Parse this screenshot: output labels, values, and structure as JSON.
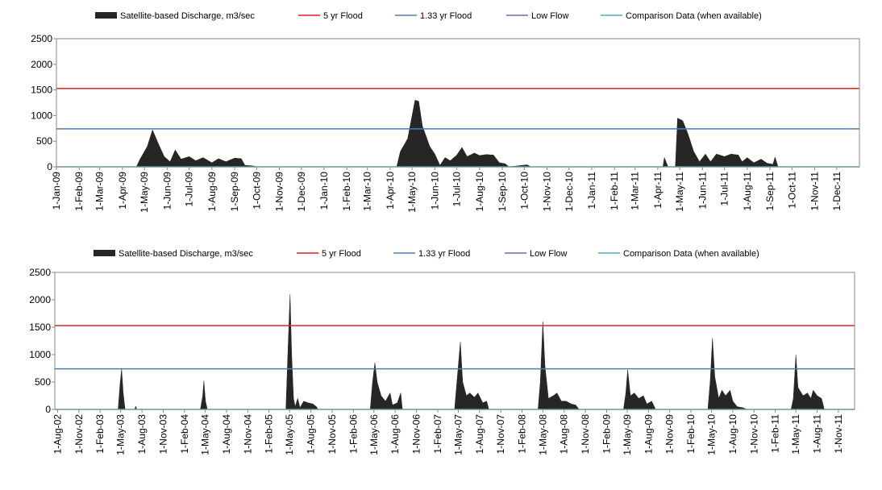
{
  "chart_data": [
    {
      "type": "area",
      "ylim": [
        0,
        2500
      ],
      "yticks": [
        0,
        500,
        1000,
        1500,
        2000,
        2500
      ],
      "xlim": [
        "2009-01-01",
        "2012-01-01"
      ],
      "xticks": [
        {
          "value": "2009-01-01",
          "label": "1-Jan-09"
        },
        {
          "value": "2009-02-01",
          "label": "1-Feb-09"
        },
        {
          "value": "2009-03-01",
          "label": "1-Mar-09"
        },
        {
          "value": "2009-04-01",
          "label": "1-Apr-09"
        },
        {
          "value": "2009-05-01",
          "label": "1-May-09"
        },
        {
          "value": "2009-06-01",
          "label": "1-Jun-09"
        },
        {
          "value": "2009-07-01",
          "label": "1-Jul-09"
        },
        {
          "value": "2009-08-01",
          "label": "1-Aug-09"
        },
        {
          "value": "2009-09-01",
          "label": "1-Sep-09"
        },
        {
          "value": "2009-10-01",
          "label": "1-Oct-09"
        },
        {
          "value": "2009-11-01",
          "label": "1-Nov-09"
        },
        {
          "value": "2009-12-01",
          "label": "1-Dec-09"
        },
        {
          "value": "2010-01-01",
          "label": "1-Jan-10"
        },
        {
          "value": "2010-02-01",
          "label": "1-Feb-10"
        },
        {
          "value": "2010-03-01",
          "label": "1-Mar-10"
        },
        {
          "value": "2010-04-01",
          "label": "1-Apr-10"
        },
        {
          "value": "2010-05-01",
          "label": "1-May-10"
        },
        {
          "value": "2010-06-01",
          "label": "1-Jun-10"
        },
        {
          "value": "2010-07-01",
          "label": "1-Jul-10"
        },
        {
          "value": "2010-08-01",
          "label": "1-Aug-10"
        },
        {
          "value": "2010-09-01",
          "label": "1-Sep-10"
        },
        {
          "value": "2010-10-01",
          "label": "1-Oct-10"
        },
        {
          "value": "2010-11-01",
          "label": "1-Nov-10"
        },
        {
          "value": "2010-12-01",
          "label": "1-Dec-10"
        },
        {
          "value": "2011-01-01",
          "label": "1-Jan-11"
        },
        {
          "value": "2011-02-01",
          "label": "1-Feb-11"
        },
        {
          "value": "2011-03-01",
          "label": "1-Mar-11"
        },
        {
          "value": "2011-04-01",
          "label": "1-Apr-11"
        },
        {
          "value": "2011-05-01",
          "label": "1-May-11"
        },
        {
          "value": "2011-06-01",
          "label": "1-Jun-11"
        },
        {
          "value": "2011-07-01",
          "label": "1-Jul-11"
        },
        {
          "value": "2011-08-01",
          "label": "1-Aug-11"
        },
        {
          "value": "2011-09-01",
          "label": "1-Sep-11"
        },
        {
          "value": "2011-10-01",
          "label": "1-Oct-11"
        },
        {
          "value": "2011-11-01",
          "label": "1-Nov-11"
        },
        {
          "value": "2011-12-01",
          "label": "1-Dec-11"
        }
      ],
      "legend": "top",
      "series": [
        {
          "name": "Satellite-based Discharge, m3/sec",
          "type": "area",
          "color": "#262626",
          "x": [
            "2009-01-01",
            "2009-04-20",
            "2009-04-25",
            "2009-05-05",
            "2009-05-12",
            "2009-05-20",
            "2009-05-28",
            "2009-06-05",
            "2009-06-12",
            "2009-06-20",
            "2009-07-01",
            "2009-07-10",
            "2009-07-20",
            "2009-08-01",
            "2009-08-10",
            "2009-08-20",
            "2009-09-01",
            "2009-09-10",
            "2009-09-15",
            "2009-09-25",
            "2009-10-01",
            "2010-04-10",
            "2010-04-15",
            "2010-04-25",
            "2010-05-05",
            "2010-05-10",
            "2010-05-15",
            "2010-05-25",
            "2010-06-01",
            "2010-06-08",
            "2010-06-15",
            "2010-06-22",
            "2010-07-01",
            "2010-07-08",
            "2010-07-15",
            "2010-07-25",
            "2010-08-01",
            "2010-08-10",
            "2010-08-20",
            "2010-08-28",
            "2010-09-05",
            "2010-09-10",
            "2010-10-05",
            "2010-10-10",
            "2011-04-08",
            "2011-04-10",
            "2011-04-15",
            "2011-04-25",
            "2011-04-28",
            "2011-05-05",
            "2011-05-12",
            "2011-05-20",
            "2011-05-28",
            "2011-06-05",
            "2011-06-12",
            "2011-06-20",
            "2011-07-01",
            "2011-07-10",
            "2011-07-20",
            "2011-07-25",
            "2011-08-01",
            "2011-08-10",
            "2011-08-20",
            "2011-08-28",
            "2011-09-05",
            "2011-09-08",
            "2011-09-12",
            "2011-12-31"
          ],
          "values": [
            0,
            0,
            150,
            400,
            720,
            450,
            200,
            100,
            330,
            150,
            200,
            120,
            180,
            80,
            160,
            100,
            170,
            160,
            30,
            20,
            0,
            0,
            300,
            550,
            1300,
            1280,
            800,
            400,
            250,
            30,
            180,
            120,
            230,
            380,
            200,
            270,
            220,
            240,
            230,
            80,
            60,
            0,
            40,
            0,
            0,
            180,
            0,
            0,
            950,
            900,
            650,
            300,
            100,
            250,
            100,
            250,
            200,
            250,
            230,
            100,
            180,
            80,
            150,
            70,
            50,
            190,
            0,
            0
          ]
        },
        {
          "name": "5 yr Flood",
          "type": "line",
          "color": "#e0201c",
          "x": [
            "2009-01-01",
            "2012-01-01"
          ],
          "values": [
            1530,
            1530
          ]
        },
        {
          "name": "1.33 yr Flood",
          "type": "line",
          "color": "#4a7ebb",
          "x": [
            "2009-01-01",
            "2012-01-01"
          ],
          "values": [
            740,
            740
          ]
        },
        {
          "name": "Low Flow",
          "type": "line",
          "color": "#7f5fa8",
          "x": [],
          "values": []
        },
        {
          "name": "Comparison Data (when available)",
          "type": "line",
          "color": "#4bacc6",
          "x": [
            "2009-01-01",
            "2012-01-01"
          ],
          "values": [
            0,
            0
          ]
        }
      ]
    },
    {
      "type": "area",
      "ylim": [
        0,
        2500
      ],
      "yticks": [
        0,
        500,
        1000,
        1500,
        2000,
        2500
      ],
      "xlim": [
        "2002-07-20",
        "2012-01-10"
      ],
      "xticks": [
        {
          "value": "2002-08-01",
          "label": "1-Aug-02"
        },
        {
          "value": "2002-11-01",
          "label": "1-Nov-02"
        },
        {
          "value": "2003-02-01",
          "label": "1-Feb-03"
        },
        {
          "value": "2003-05-01",
          "label": "1-May-03"
        },
        {
          "value": "2003-08-01",
          "label": "1-Aug-03"
        },
        {
          "value": "2003-11-01",
          "label": "1-Nov-03"
        },
        {
          "value": "2004-02-01",
          "label": "1-Feb-04"
        },
        {
          "value": "2004-05-01",
          "label": "1-May-04"
        },
        {
          "value": "2004-08-01",
          "label": "1-Aug-04"
        },
        {
          "value": "2004-11-01",
          "label": "1-Nov-04"
        },
        {
          "value": "2005-02-01",
          "label": "1-Feb-05"
        },
        {
          "value": "2005-05-01",
          "label": "1-May-05"
        },
        {
          "value": "2005-08-01",
          "label": "1-Aug-05"
        },
        {
          "value": "2005-11-01",
          "label": "1-Nov-05"
        },
        {
          "value": "2006-02-01",
          "label": "1-Feb-06"
        },
        {
          "value": "2006-05-01",
          "label": "1-May-06"
        },
        {
          "value": "2006-08-01",
          "label": "1-Aug-06"
        },
        {
          "value": "2006-11-01",
          "label": "1-Nov-06"
        },
        {
          "value": "2007-02-01",
          "label": "1-Feb-07"
        },
        {
          "value": "2007-05-01",
          "label": "1-May-07"
        },
        {
          "value": "2007-08-01",
          "label": "1-Aug-07"
        },
        {
          "value": "2007-11-01",
          "label": "1-Nov-07"
        },
        {
          "value": "2008-02-01",
          "label": "1-Feb-08"
        },
        {
          "value": "2008-05-01",
          "label": "1-May-08"
        },
        {
          "value": "2008-08-01",
          "label": "1-Aug-08"
        },
        {
          "value": "2008-11-01",
          "label": "1-Nov-08"
        },
        {
          "value": "2009-02-01",
          "label": "1-Feb-09"
        },
        {
          "value": "2009-05-01",
          "label": "1-May-09"
        },
        {
          "value": "2009-08-01",
          "label": "1-Aug-09"
        },
        {
          "value": "2009-11-01",
          "label": "1-Nov-09"
        },
        {
          "value": "2010-02-01",
          "label": "1-Feb-10"
        },
        {
          "value": "2010-05-01",
          "label": "1-May-10"
        },
        {
          "value": "2010-08-01",
          "label": "1-Aug-10"
        },
        {
          "value": "2010-11-01",
          "label": "1-Nov-10"
        },
        {
          "value": "2011-02-01",
          "label": "1-Feb-11"
        },
        {
          "value": "2011-05-01",
          "label": "1-May-11"
        },
        {
          "value": "2011-08-01",
          "label": "1-Aug-11"
        },
        {
          "value": "2011-11-01",
          "label": "1-Nov-11"
        }
      ],
      "legend": "top",
      "series": [
        {
          "name": "Satellite-based Discharge, m3/sec",
          "type": "area",
          "color": "#262626",
          "x": [
            "2002-08-01",
            "2003-04-20",
            "2003-04-28",
            "2003-05-05",
            "2003-05-12",
            "2003-05-20",
            "2003-07-01",
            "2003-07-05",
            "2003-07-10",
            "2004-04-10",
            "2004-04-20",
            "2004-04-25",
            "2004-05-02",
            "2004-05-10",
            "2005-04-15",
            "2005-04-25",
            "2005-05-03",
            "2005-05-10",
            "2005-05-18",
            "2005-05-25",
            "2005-06-05",
            "2005-06-15",
            "2005-07-01",
            "2005-07-20",
            "2005-08-10",
            "2005-08-25",
            "2005-09-01",
            "2006-04-15",
            "2006-04-25",
            "2006-05-05",
            "2006-05-15",
            "2006-06-01",
            "2006-06-20",
            "2006-07-10",
            "2006-07-20",
            "2006-08-10",
            "2006-08-25",
            "2006-09-01",
            "2007-04-15",
            "2007-04-25",
            "2007-05-10",
            "2007-05-20",
            "2007-06-05",
            "2007-06-20",
            "2007-07-10",
            "2007-07-25",
            "2007-08-15",
            "2007-09-01",
            "2007-09-10",
            "2008-04-10",
            "2008-04-20",
            "2008-05-01",
            "2008-05-10",
            "2008-05-25",
            "2008-06-15",
            "2008-07-01",
            "2008-07-20",
            "2008-08-10",
            "2008-09-01",
            "2008-09-20",
            "2008-10-05",
            "2009-04-15",
            "2009-04-25",
            "2009-05-03",
            "2009-05-15",
            "2009-06-01",
            "2009-06-20",
            "2009-07-10",
            "2009-07-25",
            "2009-08-15",
            "2009-09-01",
            "2010-04-15",
            "2010-04-25",
            "2010-05-05",
            "2010-05-15",
            "2010-06-01",
            "2010-06-15",
            "2010-07-01",
            "2010-07-20",
            "2010-08-01",
            "2010-08-20",
            "2010-09-15",
            "2010-10-01",
            "2011-04-10",
            "2011-04-20",
            "2011-05-01",
            "2011-05-10",
            "2011-06-01",
            "2011-06-20",
            "2011-07-05",
            "2011-07-15",
            "2011-08-01",
            "2011-08-20",
            "2011-09-01",
            "2012-01-01"
          ],
          "values": [
            0,
            0,
            450,
            740,
            300,
            0,
            0,
            60,
            0,
            0,
            250,
            520,
            150,
            0,
            0,
            1200,
            2100,
            1000,
            200,
            50,
            200,
            30,
            150,
            120,
            100,
            50,
            0,
            0,
            500,
            850,
            500,
            250,
            150,
            300,
            80,
            120,
            300,
            0,
            0,
            500,
            1230,
            500,
            250,
            300,
            220,
            300,
            120,
            150,
            0,
            0,
            500,
            1600,
            800,
            200,
            250,
            300,
            150,
            150,
            100,
            80,
            0,
            0,
            300,
            720,
            250,
            300,
            200,
            250,
            100,
            150,
            0,
            0,
            500,
            1300,
            600,
            200,
            350,
            250,
            350,
            150,
            50,
            30,
            0,
            0,
            200,
            1000,
            400,
            250,
            300,
            200,
            350,
            250,
            200,
            0,
            0
          ]
        },
        {
          "name": "5 yr Flood",
          "type": "line",
          "color": "#e0201c",
          "x": [
            "2002-07-20",
            "2012-01-10"
          ],
          "values": [
            1530,
            1530
          ]
        },
        {
          "name": "1.33 yr Flood",
          "type": "line",
          "color": "#4a7ebb",
          "x": [
            "2002-07-20",
            "2012-01-10"
          ],
          "values": [
            740,
            740
          ]
        },
        {
          "name": "Low Flow",
          "type": "line",
          "color": "#7f5fa8",
          "x": [],
          "values": []
        },
        {
          "name": "Comparison Data (when available)",
          "type": "line",
          "color": "#4bacc6",
          "x": [
            "2002-07-20",
            "2012-01-10"
          ],
          "values": [
            0,
            0
          ]
        }
      ]
    }
  ]
}
